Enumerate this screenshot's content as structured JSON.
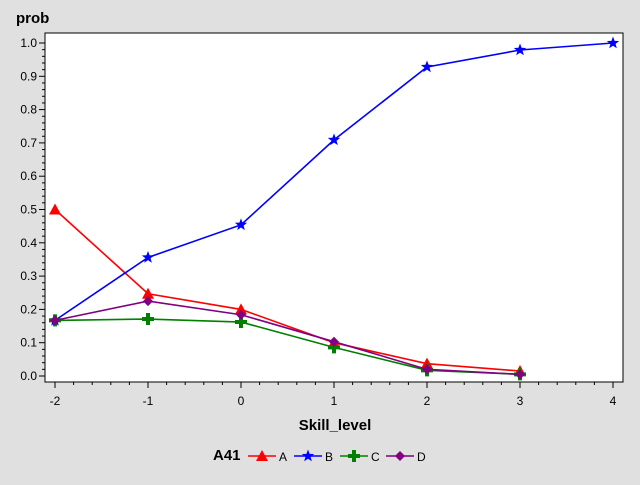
{
  "chart_data": {
    "type": "line",
    "ylabel": "prob",
    "xlabel": "Skill_level",
    "xlim": [
      -2,
      4
    ],
    "ylim": [
      0,
      1
    ],
    "x_ticks": [
      "-2",
      "-1",
      "0",
      "1",
      "2",
      "3",
      "4"
    ],
    "y_ticks": [
      "0.0",
      "0.1",
      "0.2",
      "0.3",
      "0.4",
      "0.5",
      "0.6",
      "0.7",
      "0.8",
      "0.9",
      "1.0"
    ],
    "grid": false,
    "legend_title": "A41",
    "legend_placement": "bottom",
    "series": [
      {
        "name": "A",
        "color": "#ff0000",
        "marker": "triangle",
        "x": [
          -2,
          -1,
          0,
          1,
          2,
          3
        ],
        "y": [
          0.5,
          0.247,
          0.2,
          0.1,
          0.037,
          0.015
        ]
      },
      {
        "name": "B",
        "color": "#0000ff",
        "marker": "star",
        "x": [
          -2,
          -1,
          0,
          1,
          2,
          3,
          4
        ],
        "y": [
          0.167,
          0.356,
          0.454,
          0.709,
          0.928,
          0.979,
          1.0
        ]
      },
      {
        "name": "C",
        "color": "#008000",
        "marker": "plus",
        "x": [
          -2,
          -1,
          0,
          1,
          2,
          3
        ],
        "y": [
          0.167,
          0.171,
          0.162,
          0.086,
          0.017,
          0.005
        ]
      },
      {
        "name": "D",
        "color": "#800080",
        "marker": "diamond",
        "x": [
          -2,
          -1,
          0,
          1,
          2,
          3
        ],
        "y": [
          0.167,
          0.225,
          0.184,
          0.103,
          0.02,
          0.005
        ]
      }
    ]
  }
}
